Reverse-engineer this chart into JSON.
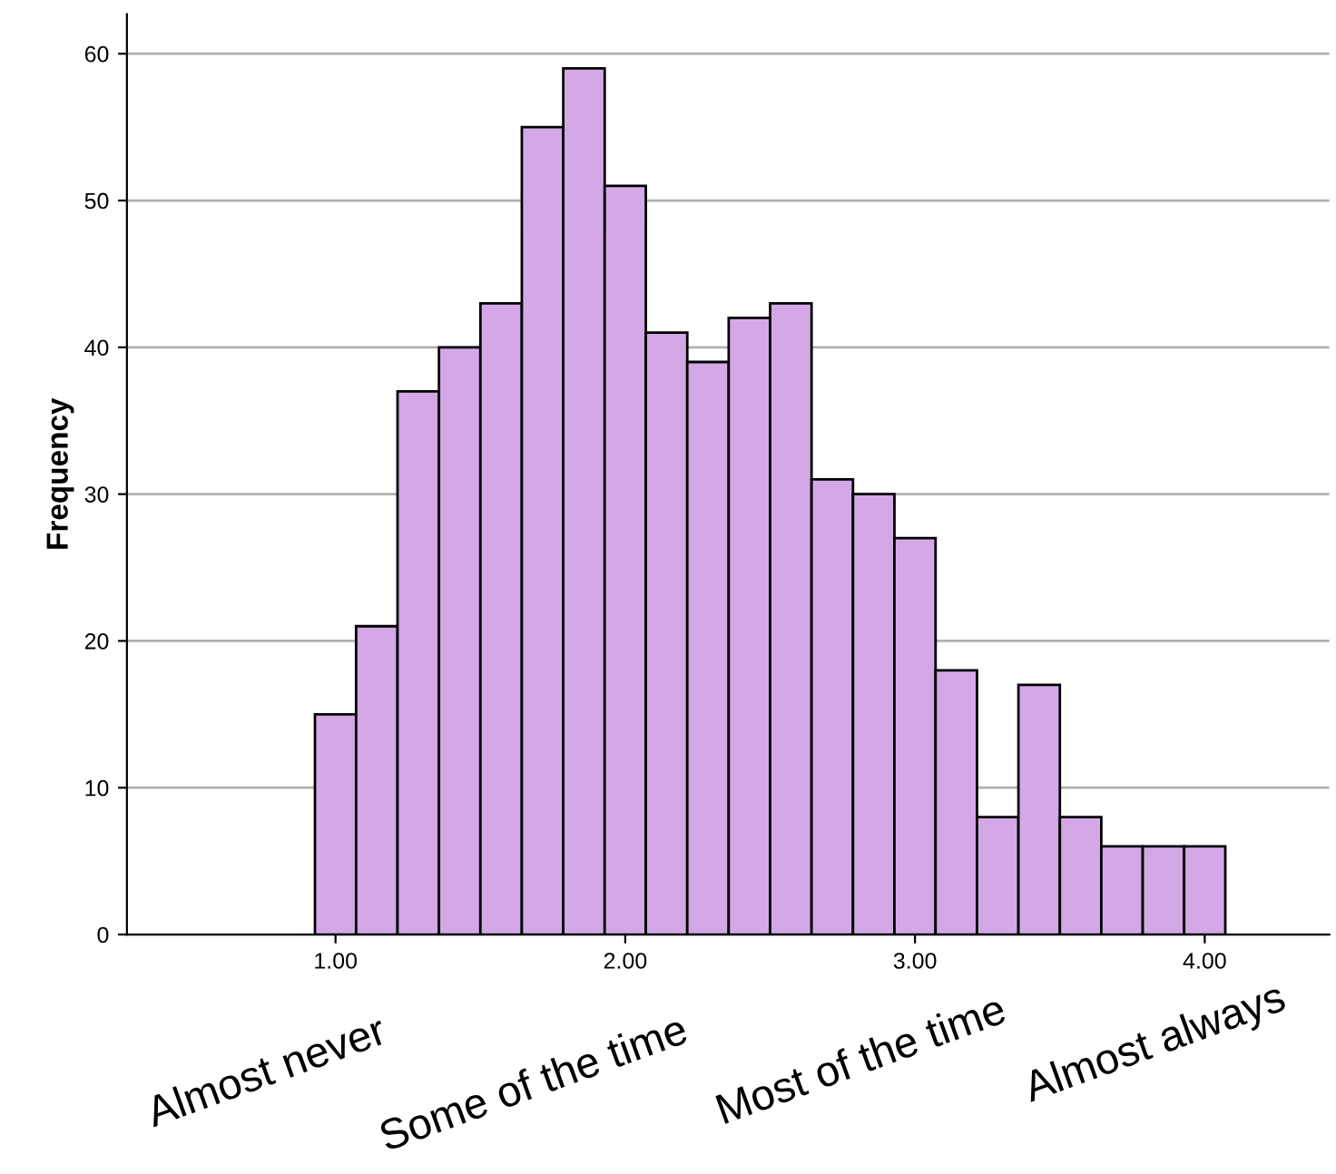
{
  "chart_data": {
    "type": "histogram",
    "ylabel": "Frequency",
    "bins": [
      0.929,
      1.071,
      1.214,
      1.357,
      1.5,
      1.643,
      1.786,
      1.929,
      2.071,
      2.214,
      2.357,
      2.5,
      2.643,
      2.786,
      2.929,
      3.071,
      3.214,
      3.357,
      3.5,
      3.643,
      3.786,
      3.929,
      4.071
    ],
    "values": [
      15,
      21,
      37,
      40,
      43,
      55,
      59,
      51,
      41,
      39,
      42,
      43,
      31,
      30,
      27,
      18,
      8,
      17,
      8,
      6,
      6,
      6
    ],
    "color": "#d4a8e6",
    "xlim": [
      0.28,
      4.43
    ],
    "xticks": [
      {
        "value": 1,
        "label": "1.00"
      },
      {
        "value": 2,
        "label": "2.00"
      },
      {
        "value": 3,
        "label": "3.00"
      },
      {
        "value": 4,
        "label": "4.00"
      }
    ],
    "ylim": [
      0,
      62.7
    ],
    "yticks": [
      0,
      10,
      20,
      30,
      40,
      50,
      60
    ],
    "grid": "y",
    "annotations": [
      "Almost never",
      "Some of the time",
      "Most of the time",
      "Almost always"
    ]
  }
}
